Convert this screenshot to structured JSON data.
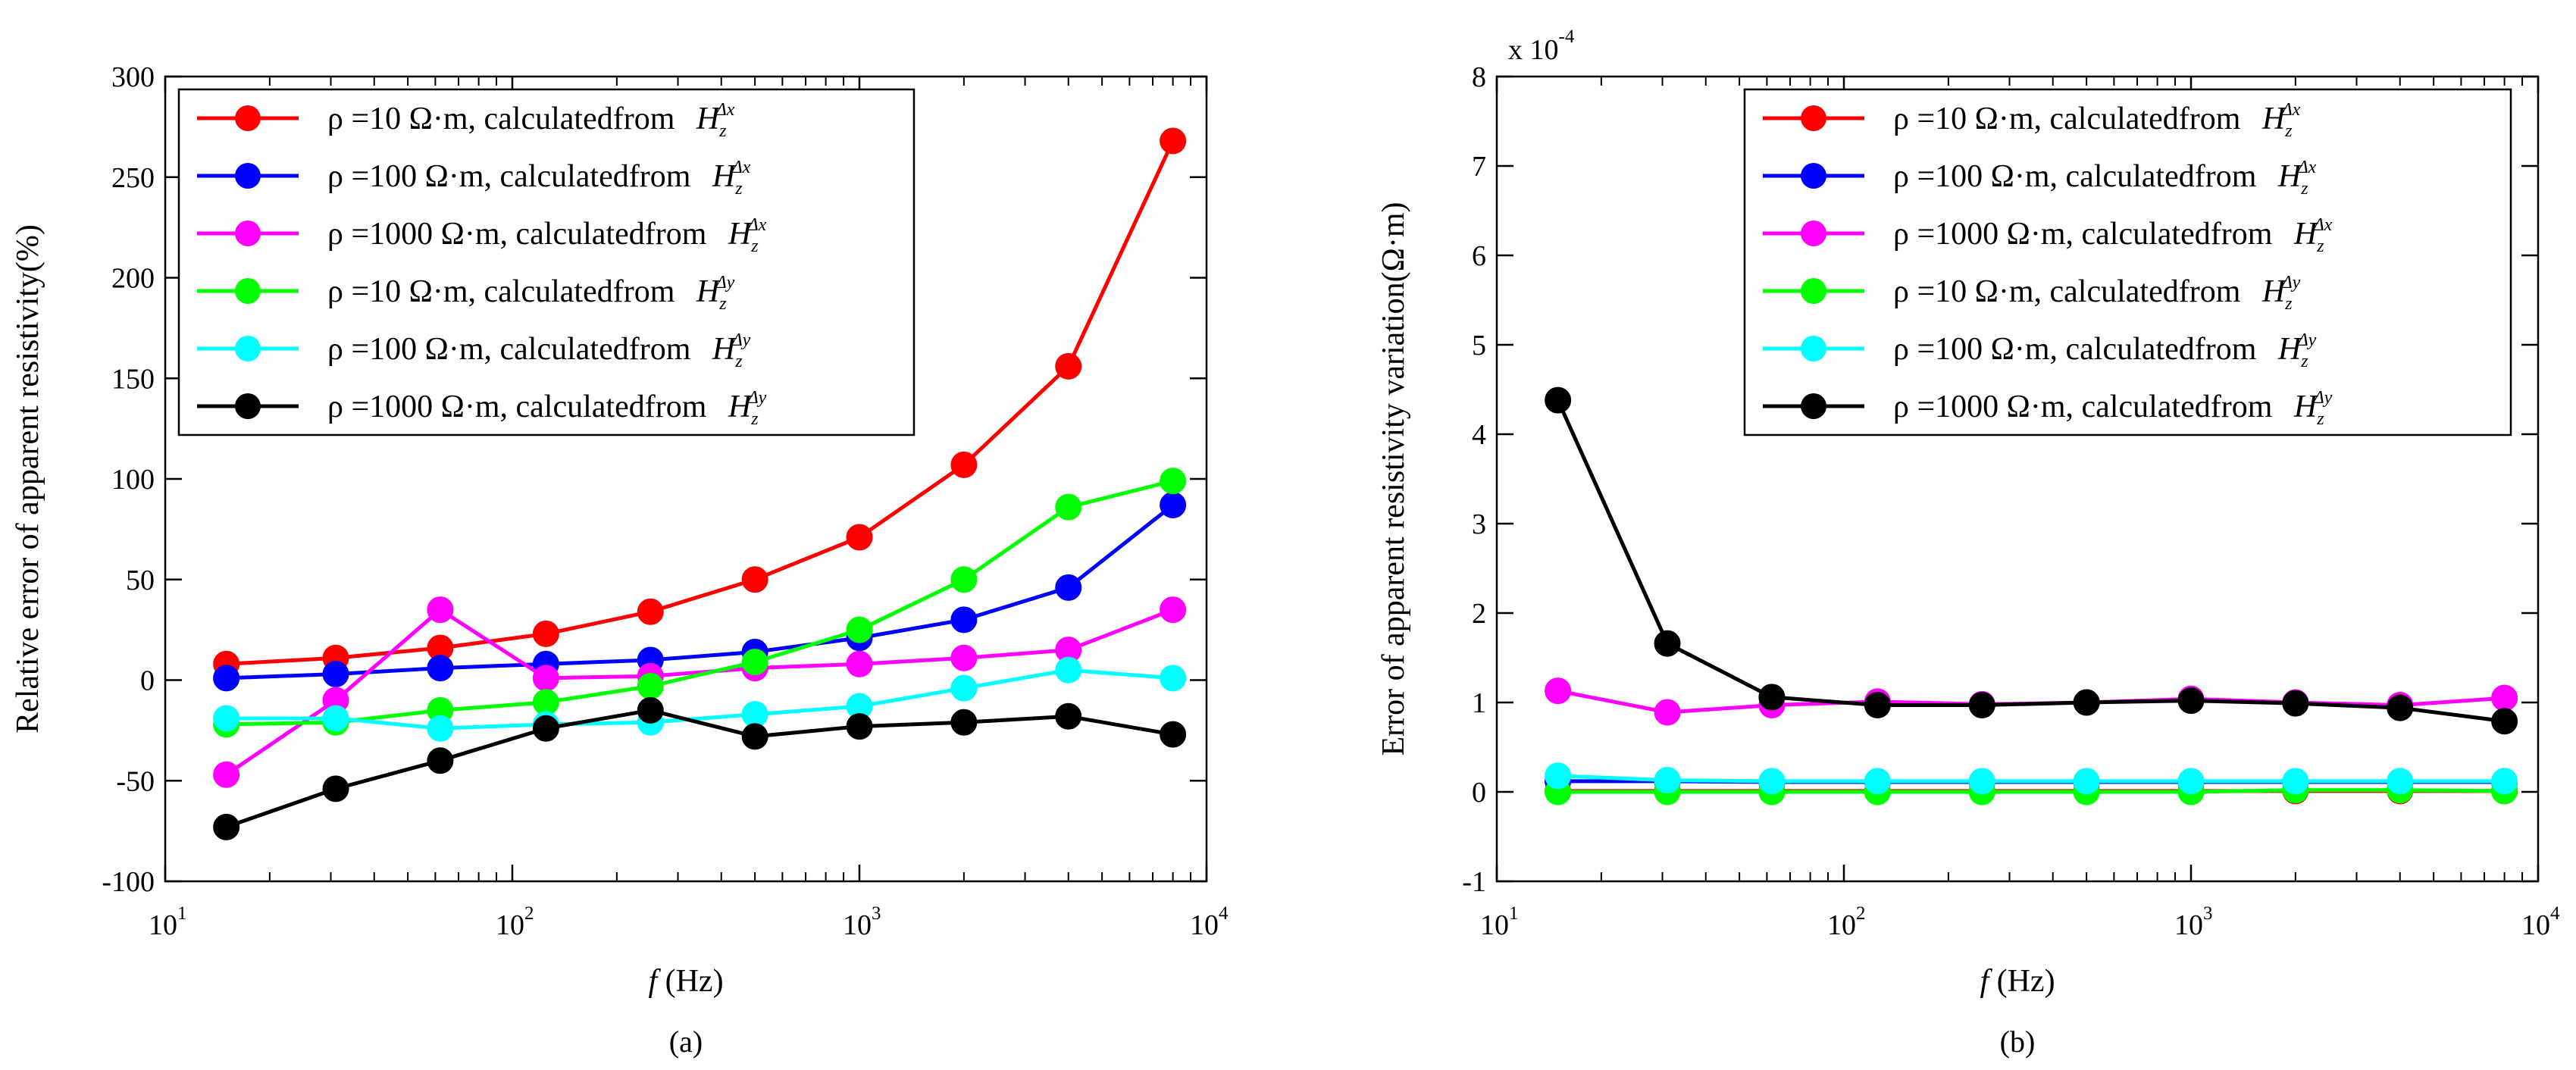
{
  "chart_data": [
    {
      "type": "line",
      "panel_label": "(a)",
      "xscale": "log",
      "xlim": [
        10,
        10000
      ],
      "ylim": [
        -100,
        300
      ],
      "xticks": [
        {
          "base": "10",
          "exp": "1"
        },
        {
          "base": "10",
          "exp": "2"
        },
        {
          "base": "10",
          "exp": "3"
        },
        {
          "base": "10",
          "exp": "4"
        }
      ],
      "yticks": [
        "-100",
        "-50",
        "0",
        "50",
        "100",
        "150",
        "200",
        "250",
        "300"
      ],
      "ytick_values": [
        -100,
        -50,
        0,
        50,
        100,
        150,
        200,
        250,
        300
      ],
      "xlabel": {
        "var": "f",
        "unit": " (Hz)"
      },
      "ylabel": "Relative error of apparent resistivity(%)",
      "legend_position": "upper-left",
      "x": [
        15,
        31,
        62,
        125,
        250,
        500,
        1000,
        2000,
        4000,
        8000
      ],
      "series": [
        {
          "label": "ρ =10 Ω·m, calculatedfrom",
          "sub": "Δx",
          "color": "#ff0000",
          "values": [
            8,
            11,
            16,
            23,
            34,
            50,
            71,
            107,
            156,
            268
          ]
        },
        {
          "label": "ρ =100 Ω·m, calculatedfrom",
          "sub": "Δx",
          "color": "#0000ff",
          "values": [
            1,
            3,
            6,
            8,
            10,
            14,
            21,
            30,
            46,
            87
          ]
        },
        {
          "label": "ρ =1000 Ω·m, calculatedfrom",
          "sub": "Δx",
          "color": "#ff00ff",
          "values": [
            -47,
            -10,
            35,
            1,
            2,
            6,
            8,
            11,
            15,
            35
          ]
        },
        {
          "label": "ρ =10 Ω·m, calculatedfrom",
          "sub": "Δy",
          "color": "#00ff00",
          "values": [
            -22,
            -21,
            -15,
            -11,
            -3,
            9,
            25,
            50,
            86,
            99
          ]
        },
        {
          "label": "ρ =100 Ω·m, calculatedfrom",
          "sub": "Δy",
          "color": "#00ffff",
          "values": [
            -19,
            -19,
            -24,
            -22,
            -21,
            -17,
            -13,
            -4,
            5,
            1
          ]
        },
        {
          "label": "ρ =1000 Ω·m, calculatedfrom",
          "sub": "Δy",
          "color": "#000000",
          "values": [
            -73,
            -54,
            -40,
            -24,
            -15,
            -28,
            -23,
            -21,
            -18,
            -27
          ]
        }
      ]
    },
    {
      "type": "line",
      "panel_label": "(b)",
      "xscale": "log",
      "xlim": [
        10,
        10000
      ],
      "ylim": [
        -1,
        8
      ],
      "y_multiplier": {
        "base": "x 10",
        "exp": "-4"
      },
      "xticks": [
        {
          "base": "10",
          "exp": "1"
        },
        {
          "base": "10",
          "exp": "2"
        },
        {
          "base": "10",
          "exp": "3"
        },
        {
          "base": "10",
          "exp": "4"
        }
      ],
      "yticks": [
        "-1",
        "0",
        "1",
        "2",
        "3",
        "4",
        "5",
        "6",
        "7",
        "8"
      ],
      "ytick_values": [
        -1,
        0,
        1,
        2,
        3,
        4,
        5,
        6,
        7,
        8
      ],
      "xlabel": {
        "var": "f",
        "unit": " (Hz)"
      },
      "ylabel": "Error of apparent resistivity variation(Ω·m)",
      "legend_position": "upper-right",
      "x": [
        15,
        31,
        62,
        125,
        250,
        500,
        1000,
        2000,
        4000,
        8000
      ],
      "series": [
        {
          "label": "ρ =10 Ω·m, calculatedfrom",
          "sub": "Δx",
          "color": "#ff0000",
          "values": [
            0.01,
            0.01,
            0.01,
            0.01,
            0.01,
            0.01,
            0.01,
            0.01,
            0.01,
            0.01
          ]
        },
        {
          "label": "ρ =100 Ω·m, calculatedfrom",
          "sub": "Δx",
          "color": "#0000ff",
          "values": [
            0.12,
            0.12,
            0.11,
            0.11,
            0.11,
            0.11,
            0.11,
            0.11,
            0.11,
            0.11
          ]
        },
        {
          "label": "ρ =1000 Ω·m, calculatedfrom",
          "sub": "Δx",
          "color": "#ff00ff",
          "values": [
            1.13,
            0.89,
            0.97,
            1.01,
            0.98,
            1.0,
            1.04,
            1.0,
            0.97,
            1.05
          ]
        },
        {
          "label": "ρ =10 Ω·m, calculatedfrom",
          "sub": "Δy",
          "color": "#00ff00",
          "values": [
            0.0,
            0.0,
            0.0,
            0.0,
            0.0,
            0.0,
            0.0,
            0.02,
            0.02,
            0.01
          ]
        },
        {
          "label": "ρ =100 Ω·m, calculatedfrom",
          "sub": "Δy",
          "color": "#00ffff",
          "values": [
            0.18,
            0.13,
            0.12,
            0.12,
            0.12,
            0.12,
            0.12,
            0.12,
            0.12,
            0.12
          ]
        },
        {
          "label": "ρ =1000 Ω·m, calculatedfrom",
          "sub": "Δy",
          "color": "#000000",
          "values": [
            4.38,
            1.66,
            1.06,
            0.97,
            0.97,
            1.0,
            1.02,
            0.99,
            0.94,
            0.79
          ]
        }
      ]
    }
  ]
}
